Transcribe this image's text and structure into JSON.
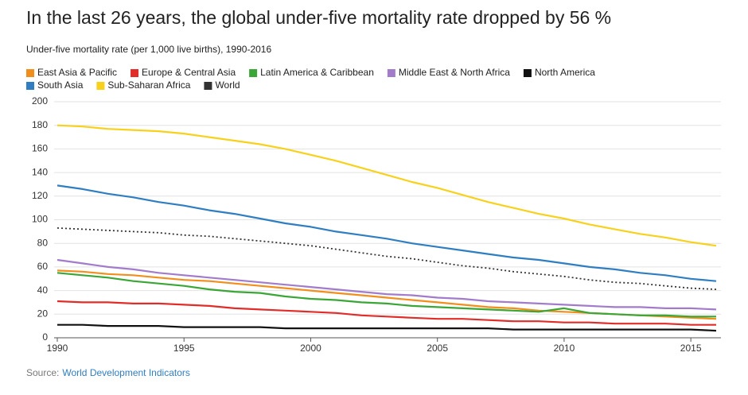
{
  "chart_data": {
    "type": "line",
    "title": "In the last 26 years, the global under-five mortality rate dropped by 56 %",
    "subtitle": "Under-five mortality rate (per 1,000 live births), 1990-2016",
    "source_label": "Source:",
    "source_link": "World Development Indicators",
    "x": [
      1990,
      1991,
      1992,
      1993,
      1994,
      1995,
      1996,
      1997,
      1998,
      1999,
      2000,
      2001,
      2002,
      2003,
      2004,
      2005,
      2006,
      2007,
      2008,
      2009,
      2010,
      2011,
      2012,
      2013,
      2014,
      2015,
      2016
    ],
    "xlim": [
      1990,
      2016
    ],
    "xticks": [
      1990,
      1995,
      2000,
      2005,
      2010,
      2015
    ],
    "ylim": [
      0,
      200
    ],
    "yticks": [
      0,
      20,
      40,
      60,
      80,
      100,
      120,
      140,
      160,
      180,
      200
    ],
    "grid": true,
    "series": [
      {
        "name": "East Asia & Pacific",
        "color": "#f28e1c",
        "values": [
          57,
          56,
          54,
          53,
          51,
          49,
          48,
          46,
          44,
          42,
          40,
          38,
          36,
          34,
          32,
          30,
          28,
          26,
          25,
          23,
          22,
          21,
          20,
          19,
          18,
          17,
          16
        ]
      },
      {
        "name": "Europe & Central Asia",
        "color": "#e02d2a",
        "values": [
          31,
          30,
          30,
          29,
          29,
          28,
          27,
          25,
          24,
          23,
          22,
          21,
          19,
          18,
          17,
          16,
          16,
          15,
          14,
          14,
          13,
          13,
          12,
          12,
          12,
          11,
          11
        ]
      },
      {
        "name": "Latin America & Caribbean",
        "color": "#3aa635",
        "values": [
          55,
          53,
          51,
          48,
          46,
          44,
          41,
          39,
          38,
          35,
          33,
          32,
          30,
          29,
          27,
          26,
          25,
          24,
          23,
          22,
          25,
          21,
          20,
          19,
          19,
          18,
          18
        ]
      },
      {
        "name": "Middle East & North Africa",
        "color": "#a27ccb",
        "values": [
          66,
          63,
          60,
          58,
          55,
          53,
          51,
          49,
          47,
          45,
          43,
          41,
          39,
          37,
          36,
          34,
          33,
          31,
          30,
          29,
          28,
          27,
          26,
          26,
          25,
          25,
          24
        ]
      },
      {
        "name": "North America",
        "color": "#111111",
        "values": [
          11,
          11,
          10,
          10,
          10,
          9,
          9,
          9,
          9,
          8,
          8,
          8,
          8,
          8,
          8,
          8,
          8,
          8,
          7,
          7,
          7,
          7,
          7,
          7,
          7,
          7,
          6
        ]
      },
      {
        "name": "South Asia",
        "color": "#2f7ec2",
        "values": [
          129,
          126,
          122,
          119,
          115,
          112,
          108,
          105,
          101,
          97,
          94,
          90,
          87,
          84,
          80,
          77,
          74,
          71,
          68,
          66,
          63,
          60,
          58,
          55,
          53,
          50,
          48
        ]
      },
      {
        "name": "Sub-Saharan Africa",
        "color": "#f7d11c",
        "values": [
          180,
          179,
          177,
          176,
          175,
          173,
          170,
          167,
          164,
          160,
          155,
          150,
          144,
          138,
          132,
          127,
          121,
          115,
          110,
          105,
          101,
          96,
          92,
          88,
          85,
          81,
          78
        ]
      },
      {
        "name": "World",
        "color": "#333333",
        "line_style": "dotted",
        "values": [
          93,
          92,
          91,
          90,
          89,
          87,
          86,
          84,
          82,
          80,
          78,
          75,
          72,
          69,
          67,
          64,
          61,
          59,
          56,
          54,
          52,
          49,
          47,
          46,
          44,
          42,
          41
        ]
      }
    ]
  }
}
